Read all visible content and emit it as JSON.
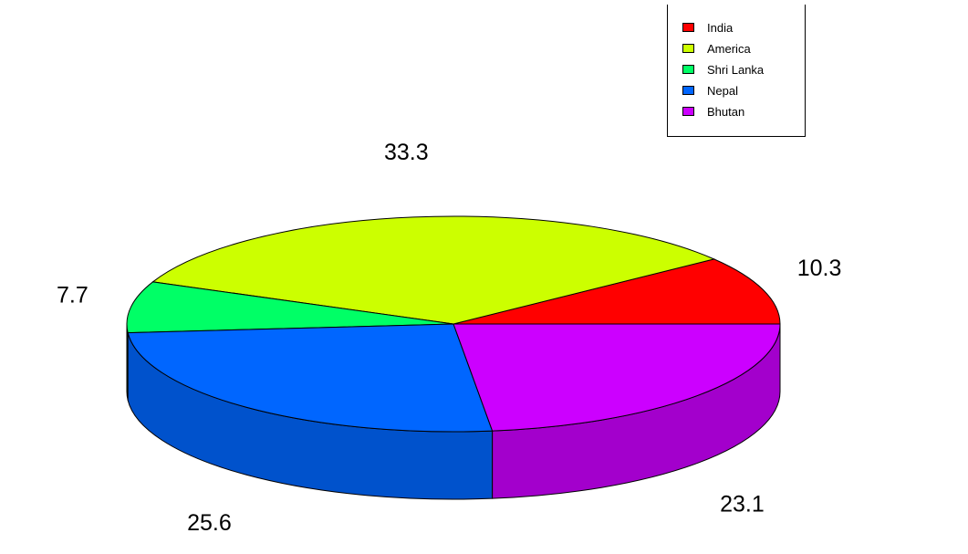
{
  "chart_data": {
    "type": "pie",
    "three_d": true,
    "categories": [
      "India",
      "America",
      "Shri Lanka",
      "Nepal",
      "Bhutan"
    ],
    "values": [
      10.3,
      33.3,
      7.7,
      25.6,
      23.1
    ],
    "labels": [
      "10.3",
      "33.3",
      "7.7",
      "25.6",
      "23.1"
    ],
    "colors": [
      "#ff0000",
      "#ccff00",
      "#00ff66",
      "#0066ff",
      "#cc00ff"
    ],
    "legend_position": "top-right"
  }
}
